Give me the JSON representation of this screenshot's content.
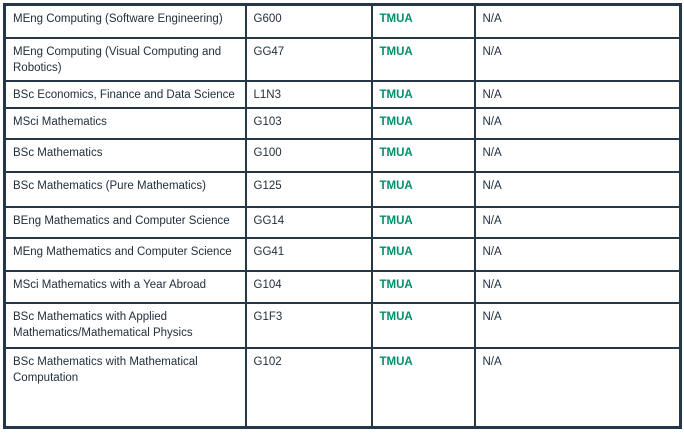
{
  "colors": {
    "table_border": "#253746",
    "body_text": "#232f3c",
    "admissions_test_link_green": "#008f6b",
    "background": "#ffffff"
  },
  "table": {
    "rows": [
      {
        "course": "MEng Computing (Software Engineering)",
        "ucas_code": "G600",
        "admissions_test": "TMUA",
        "note": "N/A"
      },
      {
        "course": "MEng Computing (Visual Computing and Robotics)",
        "ucas_code": "GG47",
        "admissions_test": "TMUA",
        "note": "N/A"
      },
      {
        "course": "BSc Economics, Finance and Data Science",
        "ucas_code": "L1N3",
        "admissions_test": "TMUA",
        "note": "N/A"
      },
      {
        "course": "MSci Mathematics",
        "ucas_code": "G103",
        "admissions_test": "TMUA",
        "note": "N/A"
      },
      {
        "course": "BSc Mathematics",
        "ucas_code": "G100",
        "admissions_test": "TMUA",
        "note": "N/A"
      },
      {
        "course": "BSc Mathematics (Pure Mathematics)",
        "ucas_code": "G125",
        "admissions_test": "TMUA",
        "note": "N/A"
      },
      {
        "course": "BEng Mathematics and Computer Science",
        "ucas_code": "GG14",
        "admissions_test": "TMUA",
        "note": "N/A"
      },
      {
        "course": "MEng Mathematics and Computer Science",
        "ucas_code": "GG41",
        "admissions_test": "TMUA",
        "note": "N/A"
      },
      {
        "course": "MSci Mathematics with a Year Abroad",
        "ucas_code": "G104",
        "admissions_test": "TMUA",
        "note": "N/A"
      },
      {
        "course": "BSc Mathematics with Applied Mathematics/Mathematical Physics",
        "ucas_code": "G1F3",
        "admissions_test": "TMUA",
        "note": "N/A"
      },
      {
        "course": "BSc Mathematics with Mathematical Computation",
        "ucas_code": "G102",
        "admissions_test": "TMUA",
        "note": "N/A"
      }
    ]
  }
}
